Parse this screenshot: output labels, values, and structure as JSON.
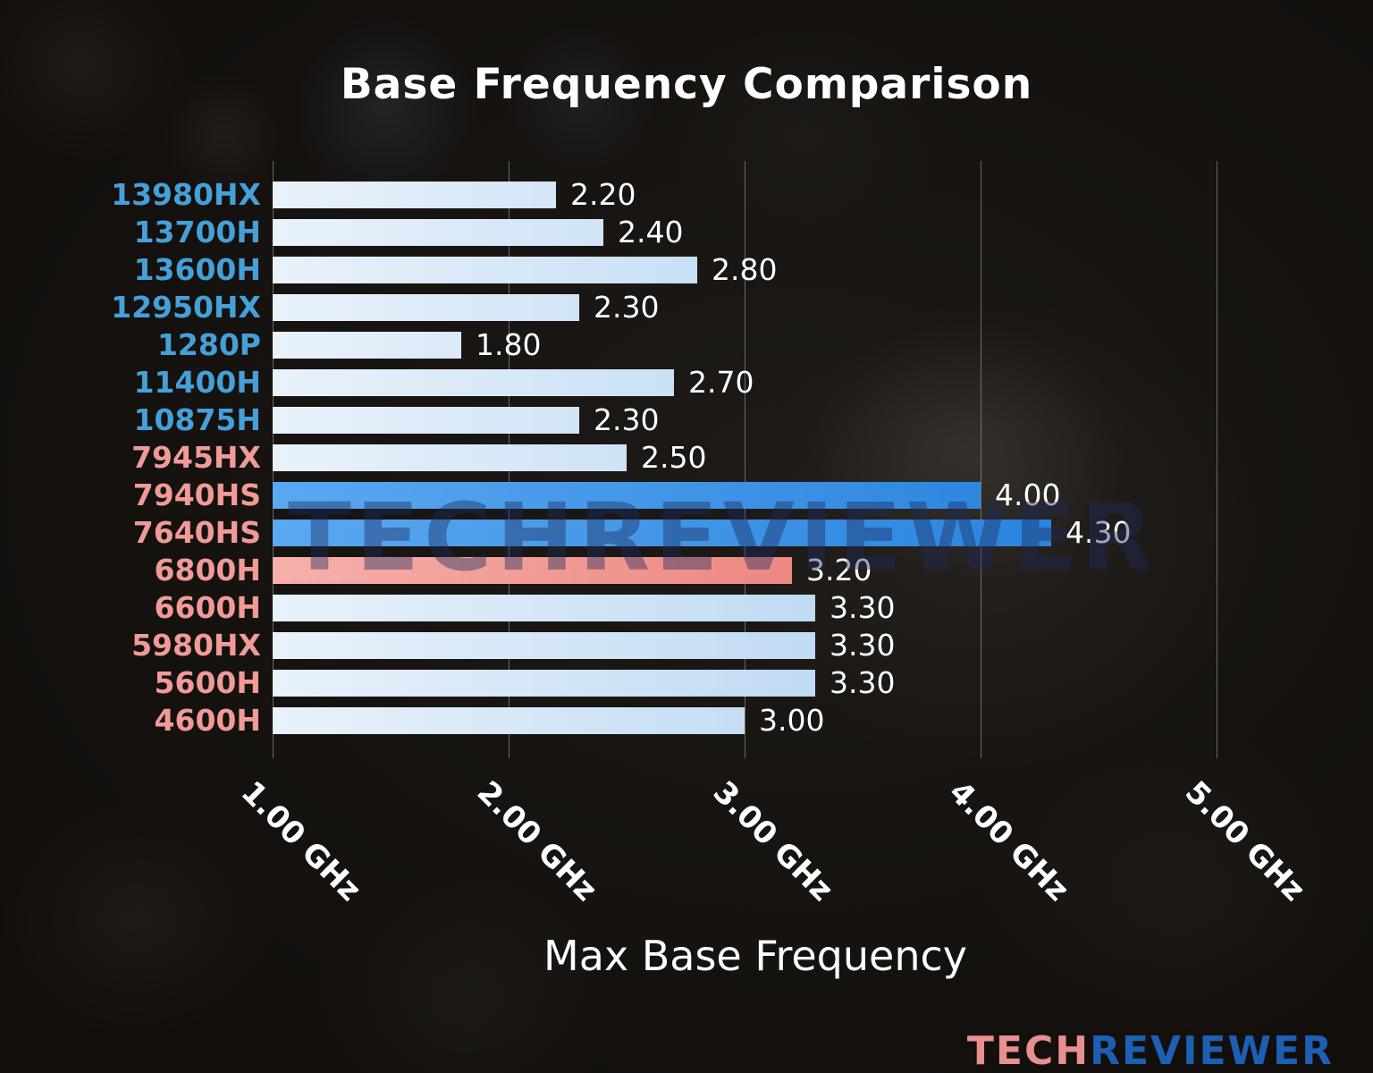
{
  "title": "Base Frequency Comparison",
  "watermark": "TECHREVIEWER",
  "logo": {
    "tech": "TECH",
    "reviewer": "REVIEWER"
  },
  "chart_data": {
    "type": "bar",
    "orientation": "horizontal",
    "title": "Base Frequency Comparison",
    "xlabel": "Max Base Frequency",
    "grid": true,
    "x_axis": {
      "min": 1.0,
      "max": 5.3,
      "unit": "GHz",
      "ticks": [
        1.0,
        2.0,
        3.0,
        4.0,
        5.0
      ],
      "tick_labels": [
        "1.00 GHz",
        "2.00 GHz",
        "3.00 GHz",
        "4.00 GHz",
        "5.00 GHz"
      ]
    },
    "bars": [
      {
        "label": "13980HX",
        "value": 2.2,
        "value_label": "2.20",
        "brand": "intel",
        "style": "light-blue"
      },
      {
        "label": "13700H",
        "value": 2.4,
        "value_label": "2.40",
        "brand": "intel",
        "style": "light-blue"
      },
      {
        "label": "13600H",
        "value": 2.8,
        "value_label": "2.80",
        "brand": "intel",
        "style": "light-blue"
      },
      {
        "label": "12950HX",
        "value": 2.3,
        "value_label": "2.30",
        "brand": "intel",
        "style": "light-blue"
      },
      {
        "label": "1280P",
        "value": 1.8,
        "value_label": "1.80",
        "brand": "intel",
        "style": "light-blue"
      },
      {
        "label": "11400H",
        "value": 2.7,
        "value_label": "2.70",
        "brand": "intel",
        "style": "light-blue"
      },
      {
        "label": "10875H",
        "value": 2.3,
        "value_label": "2.30",
        "brand": "intel",
        "style": "light-blue"
      },
      {
        "label": "7945HX",
        "value": 2.5,
        "value_label": "2.50",
        "brand": "amd",
        "style": "light-blue"
      },
      {
        "label": "7940HS",
        "value": 4.0,
        "value_label": "4.00",
        "brand": "amd",
        "style": "bright-blue"
      },
      {
        "label": "7640HS",
        "value": 4.3,
        "value_label": "4.30",
        "brand": "amd",
        "style": "bright-blue"
      },
      {
        "label": "6800H",
        "value": 3.2,
        "value_label": "3.20",
        "brand": "amd",
        "style": "salmon"
      },
      {
        "label": "6600H",
        "value": 3.3,
        "value_label": "3.30",
        "brand": "amd",
        "style": "light-blue"
      },
      {
        "label": "5980HX",
        "value": 3.3,
        "value_label": "3.30",
        "brand": "amd",
        "style": "light-blue"
      },
      {
        "label": "5600H",
        "value": 3.3,
        "value_label": "3.30",
        "brand": "amd",
        "style": "light-blue"
      },
      {
        "label": "4600H",
        "value": 3.0,
        "value_label": "3.00",
        "brand": "amd",
        "style": "light-blue"
      }
    ]
  },
  "colors": {
    "intel_label": "#46a0d8",
    "amd_label": "#f09b97",
    "bar_light_blue_start": "#e9f2fb",
    "bar_light_blue_end": "#9cc6ec",
    "bar_bright_blue_start": "#5aa8f0",
    "bar_bright_blue_end": "#1b79d9",
    "bar_salmon_start": "#f6b0ab",
    "bar_salmon_end": "#e4615c",
    "value_text": "#ffffff",
    "gridline": "#afafaf",
    "watermark_text": "#1c2a5a",
    "logo_tech": "#e88f8f",
    "logo_reviewer": "#1d5fb2"
  }
}
